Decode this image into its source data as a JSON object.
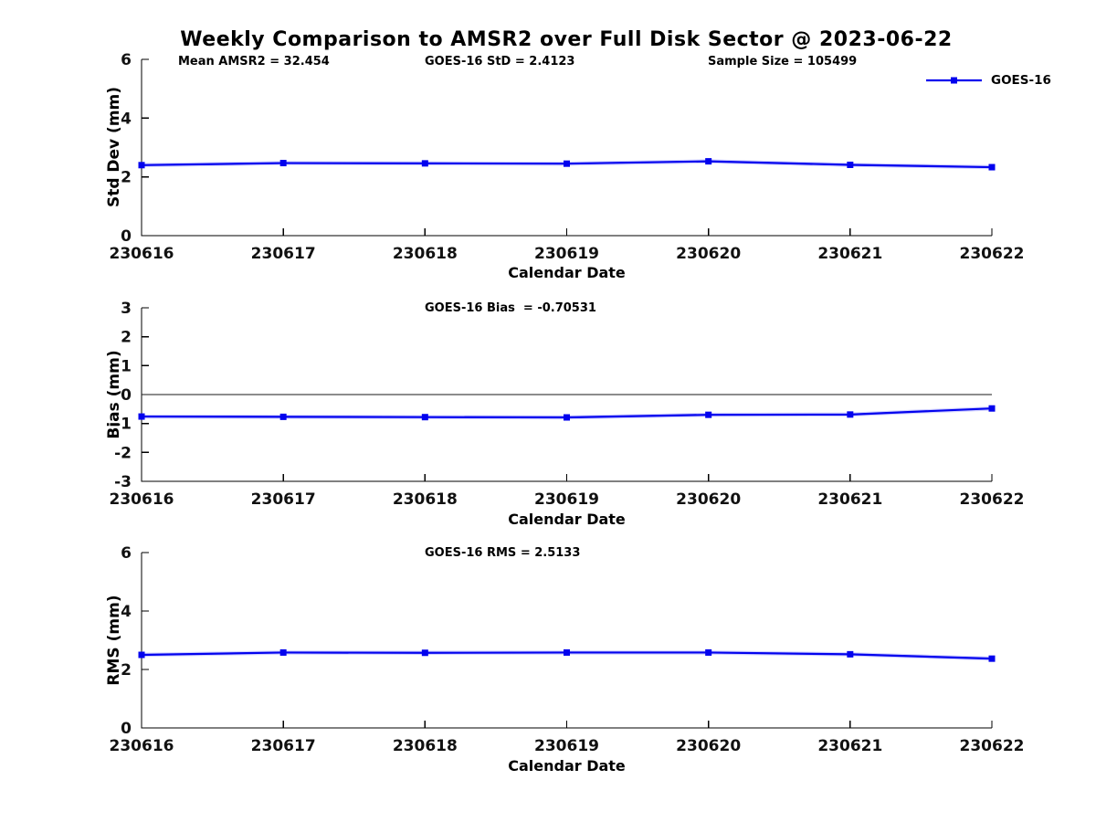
{
  "title": "Weekly Comparison to AMSR2 over Full Disk Sector @ 2023-06-22",
  "colors": {
    "line": "#0202ee",
    "line_halo": "#9a9aff",
    "axis": "#000000",
    "tick_text": "#111111"
  },
  "stats": {
    "mean_amsr2": 32.454,
    "goes16_std": 2.4123,
    "sample_size": 105499,
    "goes16_bias": -0.70531,
    "goes16_rms": 2.5133
  },
  "chart_data": [
    {
      "id": "std-dev",
      "type": "line",
      "x": [
        "230616",
        "230617",
        "230618",
        "230619",
        "230620",
        "230621",
        "230622"
      ],
      "series": [
        {
          "name": "GOES-16",
          "values": [
            2.4,
            2.47,
            2.46,
            2.45,
            2.53,
            2.41,
            2.33
          ]
        }
      ],
      "ylabel": "Std Dev (mm)",
      "xlabel": "Calendar Date",
      "ylim": [
        0,
        6
      ],
      "yticks": [
        0,
        2,
        4,
        6
      ],
      "grid": false,
      "zero_line": false,
      "legend_position": "top-right-outside",
      "annotations": [
        {
          "text": "Mean AMSR2 = 32.454"
        },
        {
          "text": "GOES-16 StD = 2.4123"
        },
        {
          "text": "Sample Size = 105499"
        }
      ]
    },
    {
      "id": "bias",
      "type": "line",
      "x": [
        "230616",
        "230617",
        "230618",
        "230619",
        "230620",
        "230621",
        "230622"
      ],
      "series": [
        {
          "name": "GOES-16",
          "values": [
            -0.76,
            -0.77,
            -0.78,
            -0.79,
            -0.7,
            -0.69,
            -0.48
          ]
        }
      ],
      "ylabel": "Bias (mm)",
      "xlabel": "Calendar Date",
      "ylim": [
        -3,
        3
      ],
      "yticks": [
        3,
        2,
        1,
        0,
        -1,
        -2,
        -3
      ],
      "grid": false,
      "zero_line": true,
      "annotations": [
        {
          "text": "GOES-16 Bias  = -0.70531"
        }
      ]
    },
    {
      "id": "rms",
      "type": "line",
      "x": [
        "230616",
        "230617",
        "230618",
        "230619",
        "230620",
        "230621",
        "230622"
      ],
      "series": [
        {
          "name": "GOES-16",
          "values": [
            2.5,
            2.58,
            2.57,
            2.58,
            2.58,
            2.52,
            2.37
          ]
        }
      ],
      "ylabel": "RMS (mm)",
      "xlabel": "Calendar Date",
      "ylim": [
        0,
        6
      ],
      "yticks": [
        0,
        2,
        4,
        6
      ],
      "grid": false,
      "zero_line": false,
      "annotations": [
        {
          "text": "GOES-16 RMS = 2.5133"
        }
      ]
    }
  ]
}
